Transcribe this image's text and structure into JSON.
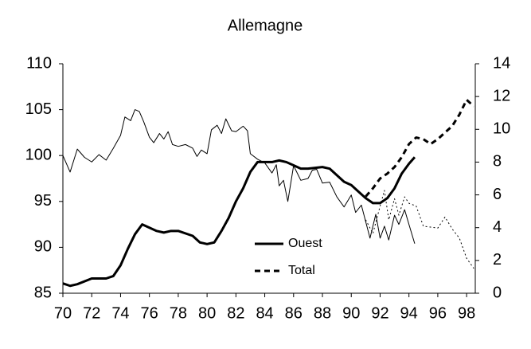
{
  "chart_data": {
    "type": "line",
    "title": "Allemagne",
    "xlim": [
      70,
      98.6
    ],
    "xticks": [
      70,
      72,
      74,
      76,
      78,
      80,
      82,
      84,
      86,
      88,
      90,
      92,
      94,
      96,
      98
    ],
    "ylim": [
      85,
      110
    ],
    "yticks": [
      85,
      90,
      95,
      100,
      105,
      110
    ],
    "y2lim": [
      0,
      14
    ],
    "y2ticks": [
      0,
      2,
      4,
      6,
      8,
      10,
      12,
      14
    ],
    "legend": "lower center",
    "series": [
      {
        "name": "Ouest",
        "color": "#000000",
        "width": 3,
        "style": "solid",
        "axis": "y2",
        "x": [
          70,
          70.5,
          71,
          72,
          73,
          73.5,
          74,
          74.5,
          75,
          75.5,
          76,
          76.5,
          77,
          77.5,
          78,
          79,
          79.5,
          80,
          80.5,
          81,
          81.5,
          82,
          82.5,
          83,
          83.5,
          84,
          84.5,
          85,
          85.5,
          86,
          86.5,
          87,
          88,
          88.5,
          89,
          89.5,
          90,
          90.5,
          91,
          91.5,
          92,
          92.5,
          93,
          93.5,
          94,
          94.4
        ],
        "values": [
          0.6,
          0.45,
          0.55,
          0.9,
          0.9,
          1.05,
          1.7,
          2.7,
          3.6,
          4.2,
          4.0,
          3.8,
          3.7,
          3.8,
          3.8,
          3.5,
          3.1,
          3.0,
          3.1,
          3.8,
          4.6,
          5.6,
          6.4,
          7.4,
          8.0,
          8.0,
          8.0,
          8.1,
          8.0,
          7.8,
          7.6,
          7.6,
          7.7,
          7.6,
          7.2,
          6.8,
          6.6,
          6.2,
          5.8,
          5.5,
          5.5,
          5.8,
          6.4,
          7.3,
          7.9,
          8.3
        ]
      },
      {
        "name": "Total",
        "color": "#000000",
        "width": 3,
        "style": "dashed",
        "axis": "y2",
        "x": [
          91,
          91.5,
          92,
          92.5,
          93,
          93.5,
          94,
          94.5,
          95,
          95.5,
          96,
          96.5,
          97,
          97.5,
          98,
          98.5
        ],
        "values": [
          5.9,
          6.4,
          7.0,
          7.3,
          7.7,
          8.3,
          9.1,
          9.5,
          9.4,
          9.1,
          9.4,
          9.8,
          10.2,
          10.9,
          11.8,
          11.4
        ]
      },
      {
        "color": "#000000",
        "width": 1,
        "style": "solid",
        "x": [
          70,
          70.5,
          71,
          71.5,
          72,
          72.5,
          73,
          73.5,
          74,
          74.3,
          74.7,
          75,
          75.3,
          75.6,
          76,
          76.3,
          76.7,
          77,
          77.3,
          77.6,
          78,
          78.5,
          79,
          79.3,
          79.6,
          80,
          80.3,
          80.7,
          81,
          81.3,
          81.7,
          82,
          82.5,
          82.8,
          83,
          83.5,
          84,
          84.5,
          84.8,
          85,
          85.3,
          85.6,
          86,
          86.5,
          87,
          87.3,
          87.6,
          88,
          88.5,
          89,
          89.5,
          90,
          90.3,
          90.7,
          91,
          91.3,
          91.7,
          92,
          92.3,
          92.6,
          93,
          93.3,
          93.7,
          94,
          94.4
        ],
        "values": [
          100,
          98.2,
          100.7,
          99.8,
          99.3,
          100.1,
          99.5,
          100.8,
          102.2,
          104.2,
          103.8,
          105,
          104.8,
          103.7,
          102,
          101.4,
          102.4,
          101.8,
          102.6,
          101.2,
          101,
          101.2,
          100.8,
          99.9,
          100.6,
          100.2,
          102.8,
          103.3,
          102.4,
          104,
          102.7,
          102.6,
          103.2,
          102.7,
          100.2,
          99.6,
          99.2,
          98.1,
          99,
          96.7,
          97.3,
          95,
          98.9,
          97.3,
          97.5,
          98.4,
          98.5,
          97,
          97.1,
          95.5,
          94.4,
          95.7,
          93.8,
          94.6,
          92.8,
          91,
          93.6,
          91,
          92.3,
          90.8,
          93.5,
          92.5,
          94.1,
          92.5,
          90.4
        ]
      },
      {
        "color": "#000000",
        "width": 1,
        "style": "dotted",
        "x": [
          91,
          91.5,
          92,
          92.3,
          92.6,
          93,
          93.3,
          93.7,
          94,
          94.5,
          95,
          95.5,
          96,
          96.5,
          97,
          97.5,
          98,
          98.5
        ],
        "values": [
          93,
          91.5,
          94.5,
          96.2,
          93,
          95.3,
          93.5,
          95.5,
          94.8,
          94.5,
          92.3,
          92.2,
          92.1,
          93.3,
          92,
          91,
          88.8,
          87.7
        ]
      }
    ]
  }
}
